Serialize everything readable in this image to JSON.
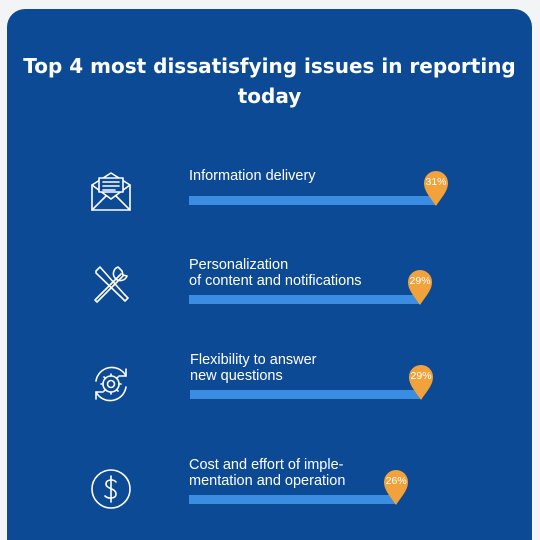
{
  "colors": {
    "background": "#0d4a96",
    "bar": "#3a8de0",
    "marker": "#f2a23a",
    "text": "#ffffff"
  },
  "title_lines": [
    "Top 4 most dissatisfying issues in reporting",
    "today"
  ],
  "chart_data": {
    "type": "bar",
    "orientation": "horizontal",
    "title": "Top 4 most dissatisfying issues in reporting today",
    "categories": [
      "Information delivery",
      "Personalization of content and notifications",
      "Flexibility to answer new questions",
      "Cost and effort of implementation and operation"
    ],
    "values": [
      31,
      29,
      29,
      26
    ],
    "unit": "%",
    "grid": false,
    "legend": "none"
  },
  "items": [
    {
      "icon": "envelope-icon",
      "label_lines": [
        "Information delivery"
      ],
      "value": 31,
      "value_label": "31%"
    },
    {
      "icon": "tools-icon",
      "label_lines": [
        "Personalization",
        "of content and notifications"
      ],
      "value": 29,
      "value_label": "29%"
    },
    {
      "icon": "gear-refresh-icon",
      "label_lines": [
        "Flexibility to answer",
        "new questions"
      ],
      "value": 29,
      "value_label": "29%"
    },
    {
      "icon": "dollar-icon",
      "label_lines": [
        "Cost and effort of imple-",
        "mentation and operation"
      ],
      "value": 26,
      "value_label": "26%"
    }
  ]
}
